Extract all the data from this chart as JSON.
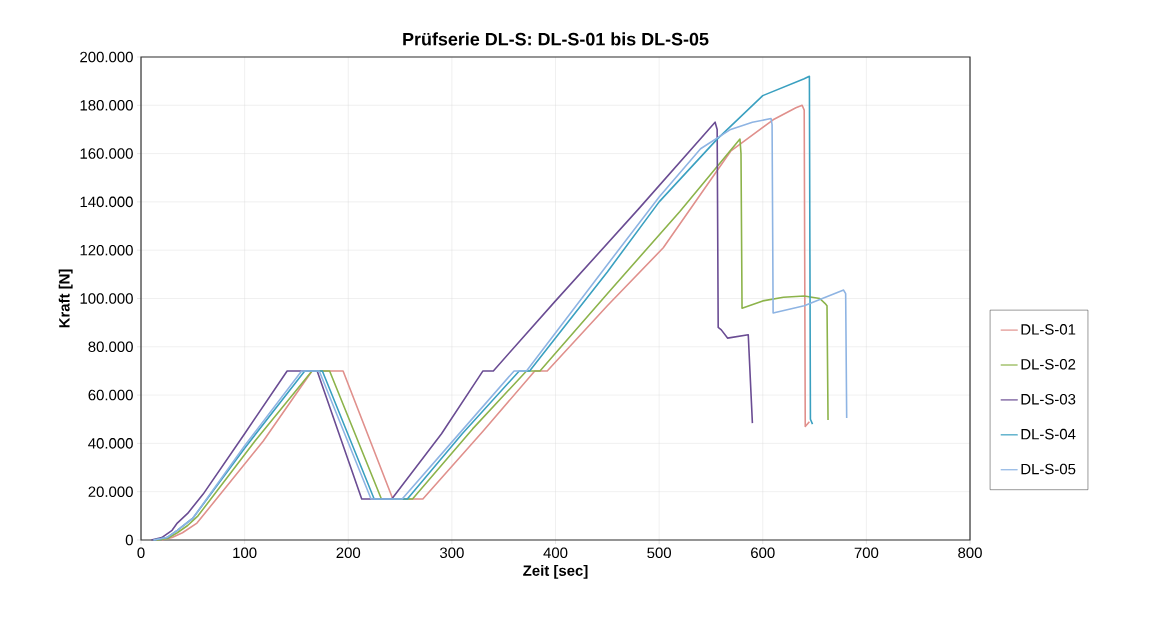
{
  "chart_data": {
    "type": "line",
    "title": "Prüfserie DL-S: DL-S-01 bis DL-S-05",
    "xlabel": "Zeit [sec]",
    "ylabel": "Kraft [N]",
    "xlim": [
      0,
      800
    ],
    "xticks": [
      0,
      100,
      200,
      300,
      400,
      500,
      600,
      700,
      800
    ],
    "ylim": [
      0,
      200000
    ],
    "yticks": [
      0,
      {
        "value": 20000,
        "label": "20.000"
      },
      {
        "value": 40000,
        "label": "40.000"
      },
      {
        "value": 60000,
        "label": "60.000"
      },
      {
        "value": 80000,
        "label": "80.000"
      },
      {
        "value": 100000,
        "label": "100.000"
      },
      {
        "value": 120000,
        "label": "120.000"
      },
      {
        "value": 140000,
        "label": "140.000"
      },
      {
        "value": 160000,
        "label": "160.000"
      },
      {
        "value": 180000,
        "label": "180.000"
      },
      {
        "value": 200000,
        "label": "200.000"
      }
    ],
    "grid": true,
    "legend": "right",
    "marker": "none",
    "line_style": "solid",
    "series": [
      {
        "name": "DL-S-01",
        "color": "#e0908c",
        "x": [
          20,
          30,
          40,
          54,
          118,
          165,
          195,
          243,
          272,
          330,
          380,
          392,
          450,
          504,
          569,
          610,
          632,
          638,
          640,
          641,
          645
        ],
        "values": [
          0,
          1000,
          3000,
          7000,
          41000,
          70000,
          70000,
          17000,
          17000,
          45000,
          70000,
          70000,
          97000,
          121000,
          161000,
          174000,
          179000,
          180000,
          178000,
          47000,
          49000
        ]
      },
      {
        "name": "DL-S-02",
        "color": "#8cb34a",
        "x": [
          15,
          25,
          35,
          45,
          55,
          110,
          165,
          182,
          232,
          262,
          320,
          372,
          385,
          450,
          520,
          578,
          579,
          580,
          600,
          620,
          640,
          655,
          660,
          662,
          663
        ],
        "values": [
          0,
          500,
          3000,
          6000,
          10000,
          41000,
          70000,
          70000,
          17000,
          17000,
          46000,
          70000,
          70000,
          102000,
          136000,
          166000,
          160000,
          96000,
          99000,
          100500,
          101000,
          100000,
          98000,
          97000,
          49700
        ]
      },
      {
        "name": "DL-S-03",
        "color": "#6a4c93",
        "x": [
          10,
          20,
          30,
          35,
          45,
          60,
          100,
          141,
          170,
          213,
          242,
          290,
          330,
          340,
          400,
          480,
          554,
          556,
          557,
          560,
          566,
          586,
          590
        ],
        "values": [
          0,
          1000,
          4000,
          7000,
          11000,
          19000,
          44000,
          70000,
          70000,
          17000,
          17000,
          44000,
          70000,
          70000,
          99000,
          137000,
          173000,
          170000,
          88000,
          87000,
          83600,
          85000,
          48400
        ]
      },
      {
        "name": "DL-S-04",
        "color": "#3aa0c0",
        "x": [
          12,
          25,
          35,
          50,
          100,
          158,
          175,
          225,
          257,
          310,
          365,
          375,
          450,
          500,
          556,
          600,
          640,
          645,
          646,
          648
        ],
        "values": [
          0,
          1000,
          4000,
          9000,
          38000,
          70000,
          70000,
          17000,
          17000,
          44000,
          70000,
          70000,
          111000,
          140000,
          166000,
          184000,
          191000,
          192000,
          50000,
          48000
        ]
      },
      {
        "name": "DL-S-05",
        "color": "#8eb4e3",
        "x": [
          12,
          25,
          35,
          50,
          100,
          155,
          172,
          222,
          252,
          305,
          360,
          372,
          450,
          500,
          540,
          569,
          590,
          608,
          609,
          610,
          640,
          678,
          680,
          681
        ],
        "values": [
          0,
          1000,
          4000,
          9000,
          39000,
          70000,
          70000,
          17000,
          17000,
          43000,
          70000,
          70000,
          114000,
          142000,
          162000,
          170000,
          173000,
          174500,
          172000,
          94000,
          97000,
          103500,
          102000,
          50500
        ]
      }
    ]
  }
}
